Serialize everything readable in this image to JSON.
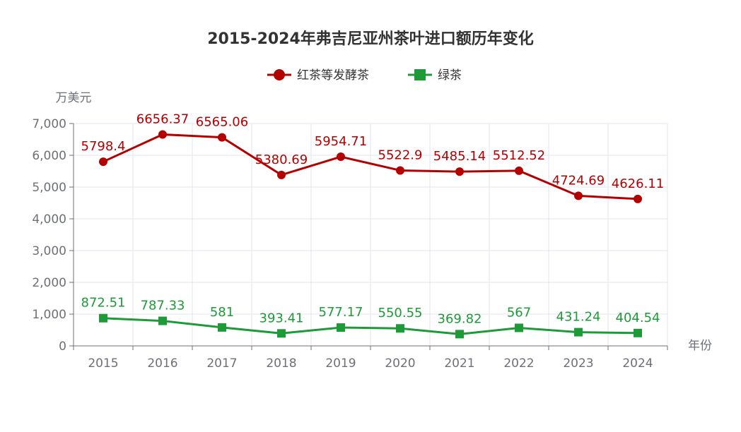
{
  "chart_data": {
    "type": "line",
    "title": "2015-2024年弗吉尼亚州茶叶进口额历年变化",
    "xlabel": "年份",
    "ylabel": "万美元",
    "categories": [
      "2015",
      "2016",
      "2017",
      "2018",
      "2019",
      "2020",
      "2021",
      "2022",
      "2023",
      "2024"
    ],
    "ylim": [
      0,
      7000
    ],
    "yticks": [
      0,
      1000,
      2000,
      3000,
      4000,
      5000,
      6000,
      7000
    ],
    "ytick_labels": [
      "0",
      "1,000",
      "2,000",
      "3,000",
      "4,000",
      "5,000",
      "6,000",
      "7,000"
    ],
    "grid": true,
    "legend_position": "top-center",
    "series": [
      {
        "name": "红茶等发酵茶",
        "color": "#b30000",
        "marker": "circle",
        "values": [
          5798.4,
          6656.37,
          6565.06,
          5380.69,
          5954.71,
          5522.9,
          5485.14,
          5512.52,
          4724.69,
          4626.11
        ],
        "labels": [
          "5798.4",
          "6656.37",
          "6565.06",
          "5380.69",
          "5954.71",
          "5522.9",
          "5485.14",
          "5512.52",
          "4724.69",
          "4626.11"
        ]
      },
      {
        "name": "绿茶",
        "color": "#1e9a38",
        "marker": "square",
        "values": [
          872.51,
          787.33,
          581,
          393.41,
          577.17,
          550.55,
          369.82,
          567,
          431.24,
          404.54
        ],
        "labels": [
          "872.51",
          "787.33",
          "581",
          "393.41",
          "577.17",
          "550.55",
          "369.82",
          "567",
          "431.24",
          "404.54"
        ]
      }
    ]
  }
}
